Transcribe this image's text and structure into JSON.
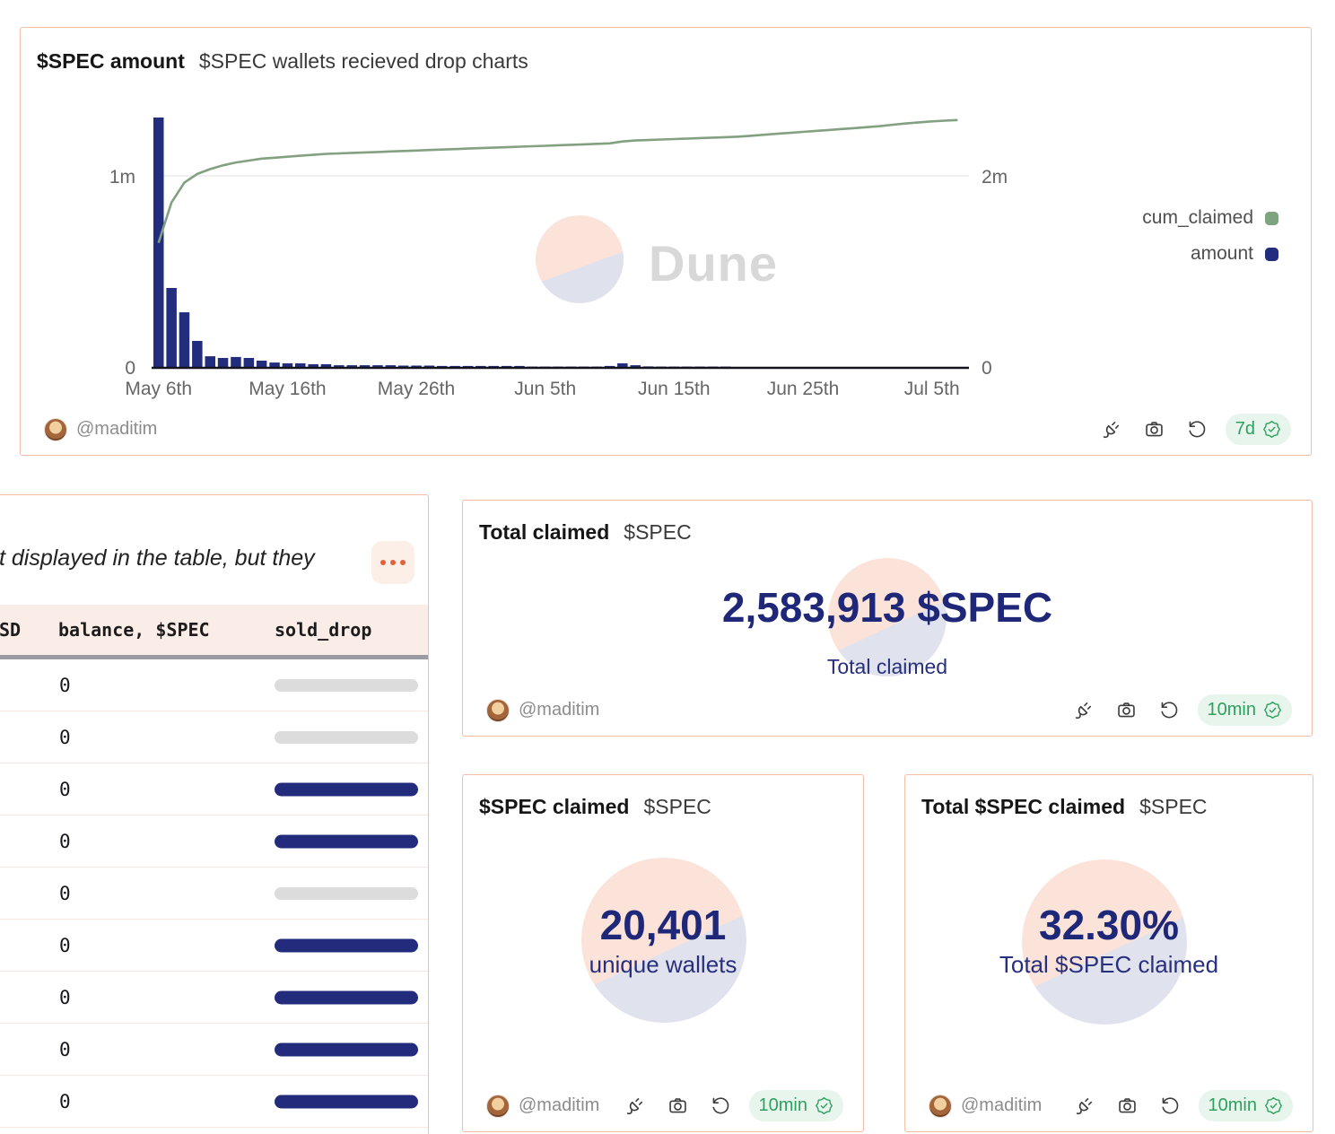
{
  "author": {
    "handle": "@maditim",
    "avatar": "girl-avatar"
  },
  "footer_icons": [
    "plug",
    "camera",
    "rotate-ccw",
    "verified-seal"
  ],
  "chart_panel": {
    "title": "$SPEC amount",
    "subtitle": "$SPEC wallets recieved drop charts",
    "badge": "7d",
    "watermark": "Dune",
    "legend": [
      {
        "label": "cum_claimed",
        "color": "#7da37f"
      },
      {
        "label": "amount",
        "color": "#232d7d"
      }
    ]
  },
  "chart_data": {
    "type": "bar",
    "title": "$SPEC amount",
    "left_axis": {
      "label": "1m",
      "grid_value": 1000000,
      "zero_label": "0",
      "ylim": [
        0,
        1310000
      ]
    },
    "right_axis": {
      "label": "2m",
      "grid_value": 2000000,
      "zero_label": "0",
      "ylim": [
        0,
        2600000
      ]
    },
    "x_ticks": [
      {
        "i": 0,
        "label": "May 6th"
      },
      {
        "i": 10,
        "label": "May 16th"
      },
      {
        "i": 20,
        "label": "May 26th"
      },
      {
        "i": 30,
        "label": "Jun 5th"
      },
      {
        "i": 40,
        "label": "Jun 15th"
      },
      {
        "i": 50,
        "label": "Jun 25th"
      },
      {
        "i": 60,
        "label": "Jul 5th"
      }
    ],
    "x": [
      "May 6",
      "May 7",
      "May 8",
      "May 9",
      "May 10",
      "May 11",
      "May 12",
      "May 13",
      "May 14",
      "May 15",
      "May 16",
      "May 17",
      "May 18",
      "May 19",
      "May 20",
      "May 21",
      "May 22",
      "May 23",
      "May 24",
      "May 25",
      "May 26",
      "May 27",
      "May 28",
      "May 29",
      "May 30",
      "May 31",
      "Jun 1",
      "Jun 2",
      "Jun 3",
      "Jun 4",
      "Jun 5",
      "Jun 6",
      "Jun 7",
      "Jun 8",
      "Jun 9",
      "Jun 10",
      "Jun 11",
      "Jun 12",
      "Jun 13",
      "Jun 14",
      "Jun 15",
      "Jun 16",
      "Jun 17",
      "Jun 18",
      "Jun 19",
      "Jun 20",
      "Jun 21",
      "Jun 22",
      "Jun 23",
      "Jun 24",
      "Jun 25",
      "Jun 26",
      "Jun 27",
      "Jun 28",
      "Jun 29",
      "Jun 30",
      "Jul 1",
      "Jul 2",
      "Jul 3",
      "Jul 4",
      "Jul 5",
      "Jul 6",
      "Jul 7"
    ],
    "series": [
      {
        "name": "amount",
        "type": "bar",
        "axis": "left",
        "color": "#232d7d",
        "values": [
          1305000,
          413000,
          286000,
          136000,
          56000,
          47000,
          52000,
          47000,
          33000,
          23000,
          19000,
          19000,
          14000,
          14000,
          9000,
          9000,
          9000,
          9000,
          9000,
          7000,
          7000,
          7000,
          5000,
          5000,
          5000,
          5000,
          5000,
          5000,
          5000,
          2000,
          2000,
          2000,
          2000,
          2000,
          2000,
          5000,
          19000,
          9000,
          3000,
          2000,
          2000,
          2000,
          2000,
          2000,
          2000,
          1000,
          1000,
          1000,
          1000,
          1000,
          1000,
          1000,
          1000,
          1000,
          1000,
          1000,
          1000,
          1000,
          1000,
          1000,
          1000,
          1000,
          1000
        ]
      },
      {
        "name": "cum_claimed",
        "type": "line",
        "axis": "right",
        "color": "#83a181",
        "values": [
          1300000,
          1720000,
          1930000,
          2020000,
          2070000,
          2110000,
          2140000,
          2160000,
          2180000,
          2190000,
          2200000,
          2210000,
          2220000,
          2230000,
          2235000,
          2240000,
          2245000,
          2250000,
          2255000,
          2260000,
          2265000,
          2270000,
          2275000,
          2280000,
          2285000,
          2290000,
          2295000,
          2300000,
          2305000,
          2310000,
          2315000,
          2320000,
          2325000,
          2330000,
          2335000,
          2340000,
          2360000,
          2370000,
          2375000,
          2380000,
          2385000,
          2390000,
          2395000,
          2400000,
          2405000,
          2410000,
          2420000,
          2430000,
          2440000,
          2450000,
          2460000,
          2470000,
          2480000,
          2490000,
          2500000,
          2510000,
          2520000,
          2535000,
          2548000,
          2560000,
          2570000,
          2577000,
          2583913
        ]
      }
    ]
  },
  "table_panel": {
    "note": "t displayed in the table, but they",
    "columns": [
      "SD",
      "balance, $SPEC",
      "sold_drop"
    ],
    "rows": [
      {
        "balance": "0",
        "bar": "gray"
      },
      {
        "balance": "0",
        "bar": "gray"
      },
      {
        "balance": "0",
        "bar": "navy"
      },
      {
        "balance": "0",
        "bar": "navy"
      },
      {
        "balance": "0",
        "bar": "gray"
      },
      {
        "balance": "0",
        "bar": "navy"
      },
      {
        "balance": "0",
        "bar": "navy"
      },
      {
        "balance": "0",
        "bar": "navy"
      },
      {
        "balance": "0",
        "bar": "navy"
      }
    ]
  },
  "counters": {
    "total_claimed": {
      "title": "Total claimed",
      "tag": "$SPEC",
      "value": "2,583,913 $SPEC",
      "caption": "Total claimed",
      "badge": "10min"
    },
    "unique_wallets": {
      "title": "$SPEC claimed",
      "tag": "$SPEC",
      "value": "20,401",
      "caption": "unique wallets",
      "badge": "10min"
    },
    "percent_claimed": {
      "title": "Total $SPEC claimed",
      "tag": "$SPEC",
      "value": "32.30%",
      "caption": "Total $SPEC claimed",
      "badge": "10min"
    }
  }
}
